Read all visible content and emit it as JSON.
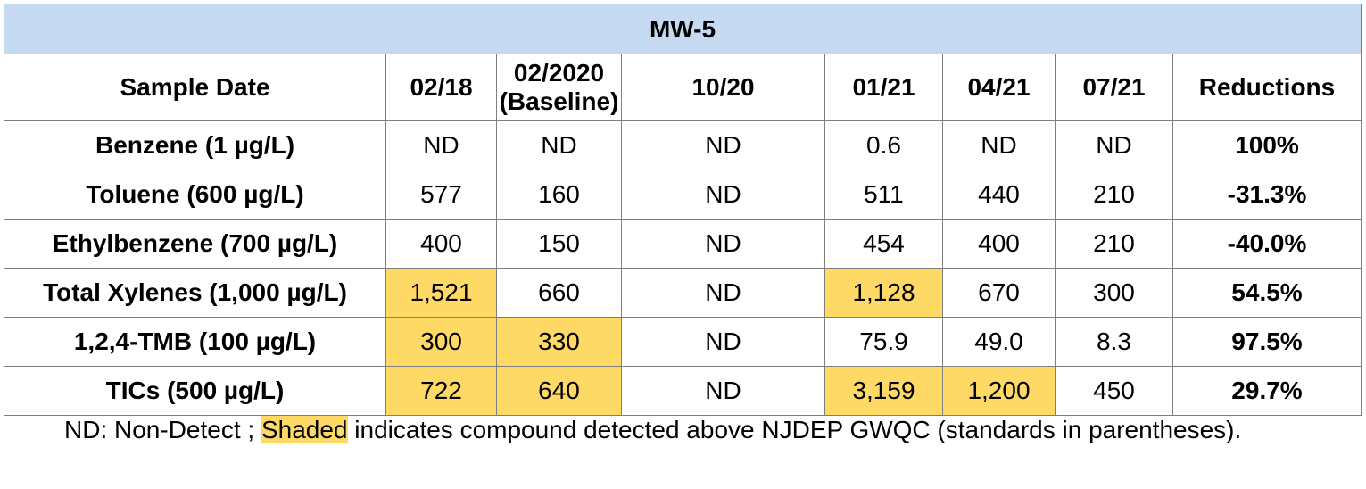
{
  "title": "MW-5",
  "header": {
    "label": "Sample Date",
    "dates": [
      {
        "line1": "02/18",
        "line2": ""
      },
      {
        "line1": "02/2020",
        "line2": "(Baseline)"
      },
      {
        "line1": "10/20",
        "line2": ""
      },
      {
        "line1": "01/21",
        "line2": ""
      },
      {
        "line1": "04/21",
        "line2": ""
      },
      {
        "line1": "07/21",
        "line2": ""
      }
    ],
    "reductions": "Reductions"
  },
  "rows": [
    {
      "label": "Benzene (1 µg/L)",
      "values": [
        "ND",
        "ND",
        "ND",
        "0.6",
        "ND",
        "ND"
      ],
      "shaded": [
        false,
        false,
        false,
        false,
        false,
        false
      ],
      "reduction": "100%"
    },
    {
      "label": "Toluene (600 µg/L)",
      "values": [
        "577",
        "160",
        "ND",
        "511",
        "440",
        "210"
      ],
      "shaded": [
        false,
        false,
        false,
        false,
        false,
        false
      ],
      "reduction": "-31.3%"
    },
    {
      "label": "Ethylbenzene (700 µg/L)",
      "values": [
        "400",
        "150",
        "ND",
        "454",
        "400",
        "210"
      ],
      "shaded": [
        false,
        false,
        false,
        false,
        false,
        false
      ],
      "reduction": "-40.0%"
    },
    {
      "label": "Total Xylenes (1,000 µg/L)",
      "values": [
        "1,521",
        "660",
        "ND",
        "1,128",
        "670",
        "300"
      ],
      "shaded": [
        true,
        false,
        false,
        true,
        false,
        false
      ],
      "reduction": "54.5%"
    },
    {
      "label": "1,2,4-TMB (100 µg/L)",
      "values": [
        "300",
        "330",
        "ND",
        "75.9",
        "49.0",
        "8.3"
      ],
      "shaded": [
        true,
        true,
        false,
        false,
        false,
        false
      ],
      "reduction": "97.5%"
    },
    {
      "label": "TICs (500 µg/L)",
      "values": [
        "722",
        "640",
        "ND",
        "3,159",
        "1,200",
        "450"
      ],
      "shaded": [
        true,
        true,
        false,
        true,
        true,
        false
      ],
      "reduction": "29.7%"
    }
  ],
  "footnote": {
    "prefix": "ND: Non-Detect ; ",
    "highlight": "Shaded",
    "suffix": " indicates compound detected above NJDEP GWQC (standards in parentheses)."
  },
  "colors": {
    "title_bg": "#c5d9f1",
    "shade": "#ffd966",
    "border": "#7f7f7f"
  }
}
